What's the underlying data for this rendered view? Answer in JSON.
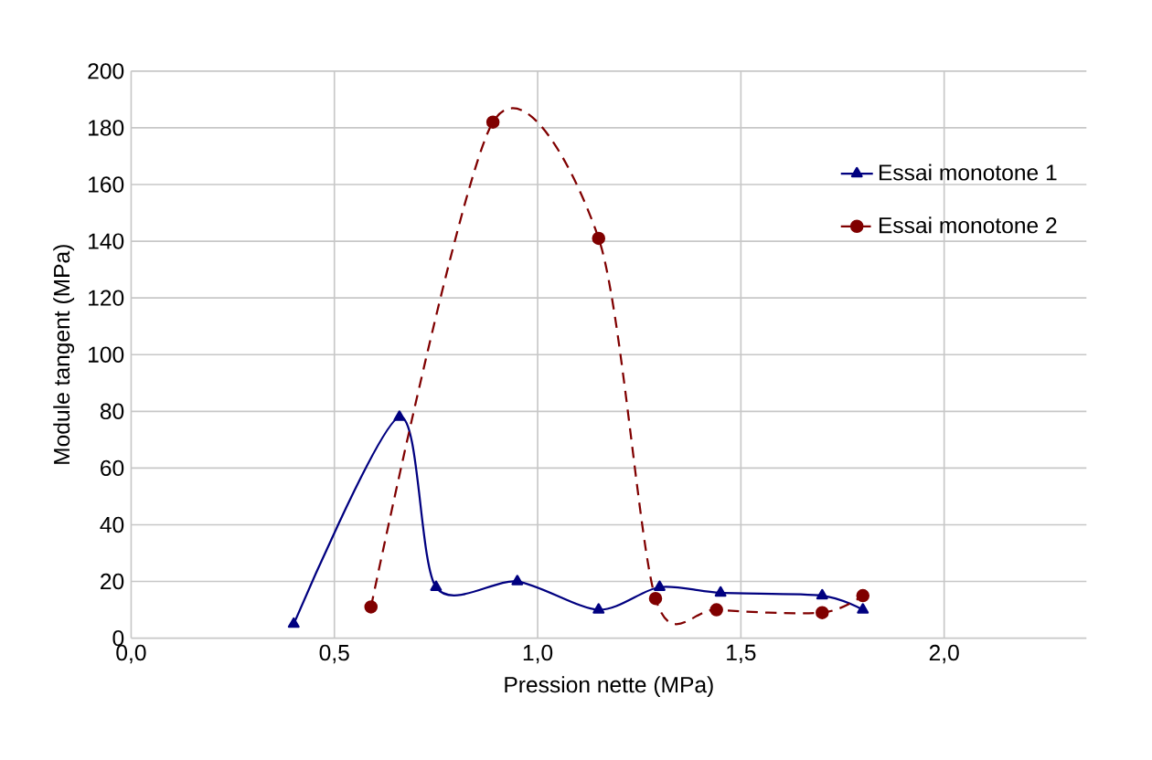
{
  "chart_data": {
    "type": "line",
    "xlabel": "Pression nette (MPa)",
    "ylabel": "Module tangent (MPa)",
    "xlim": [
      0,
      2.35
    ],
    "xticks": [
      {
        "value": 0,
        "label": "0,0"
      },
      {
        "value": 0.5,
        "label": "0,5"
      },
      {
        "value": 1,
        "label": "1,0"
      },
      {
        "value": 1.5,
        "label": "1,5"
      },
      {
        "value": 2,
        "label": "2,0"
      }
    ],
    "ylim": [
      0,
      200
    ],
    "yticks": [
      0,
      20,
      40,
      60,
      80,
      100,
      120,
      140,
      160,
      180,
      200
    ],
    "grid": true,
    "legend": "top right",
    "series": [
      {
        "name": "Essai monotone 1",
        "color": "#000080",
        "marker": "triangle",
        "line_style": "solid",
        "x": [
          0.4,
          0.66,
          0.75,
          0.95,
          1.15,
          1.3,
          1.45,
          1.7,
          1.8
        ],
        "values": [
          5,
          78,
          18,
          20,
          10,
          18,
          16,
          15,
          10
        ]
      },
      {
        "name": "Essai monotone 2",
        "color": "#800000",
        "marker": "circle",
        "line_style": "dashed",
        "x": [
          0.59,
          0.89,
          1.15,
          1.29,
          1.44,
          1.7,
          1.8
        ],
        "values": [
          11,
          182,
          141,
          14,
          10,
          9,
          15
        ]
      }
    ]
  }
}
